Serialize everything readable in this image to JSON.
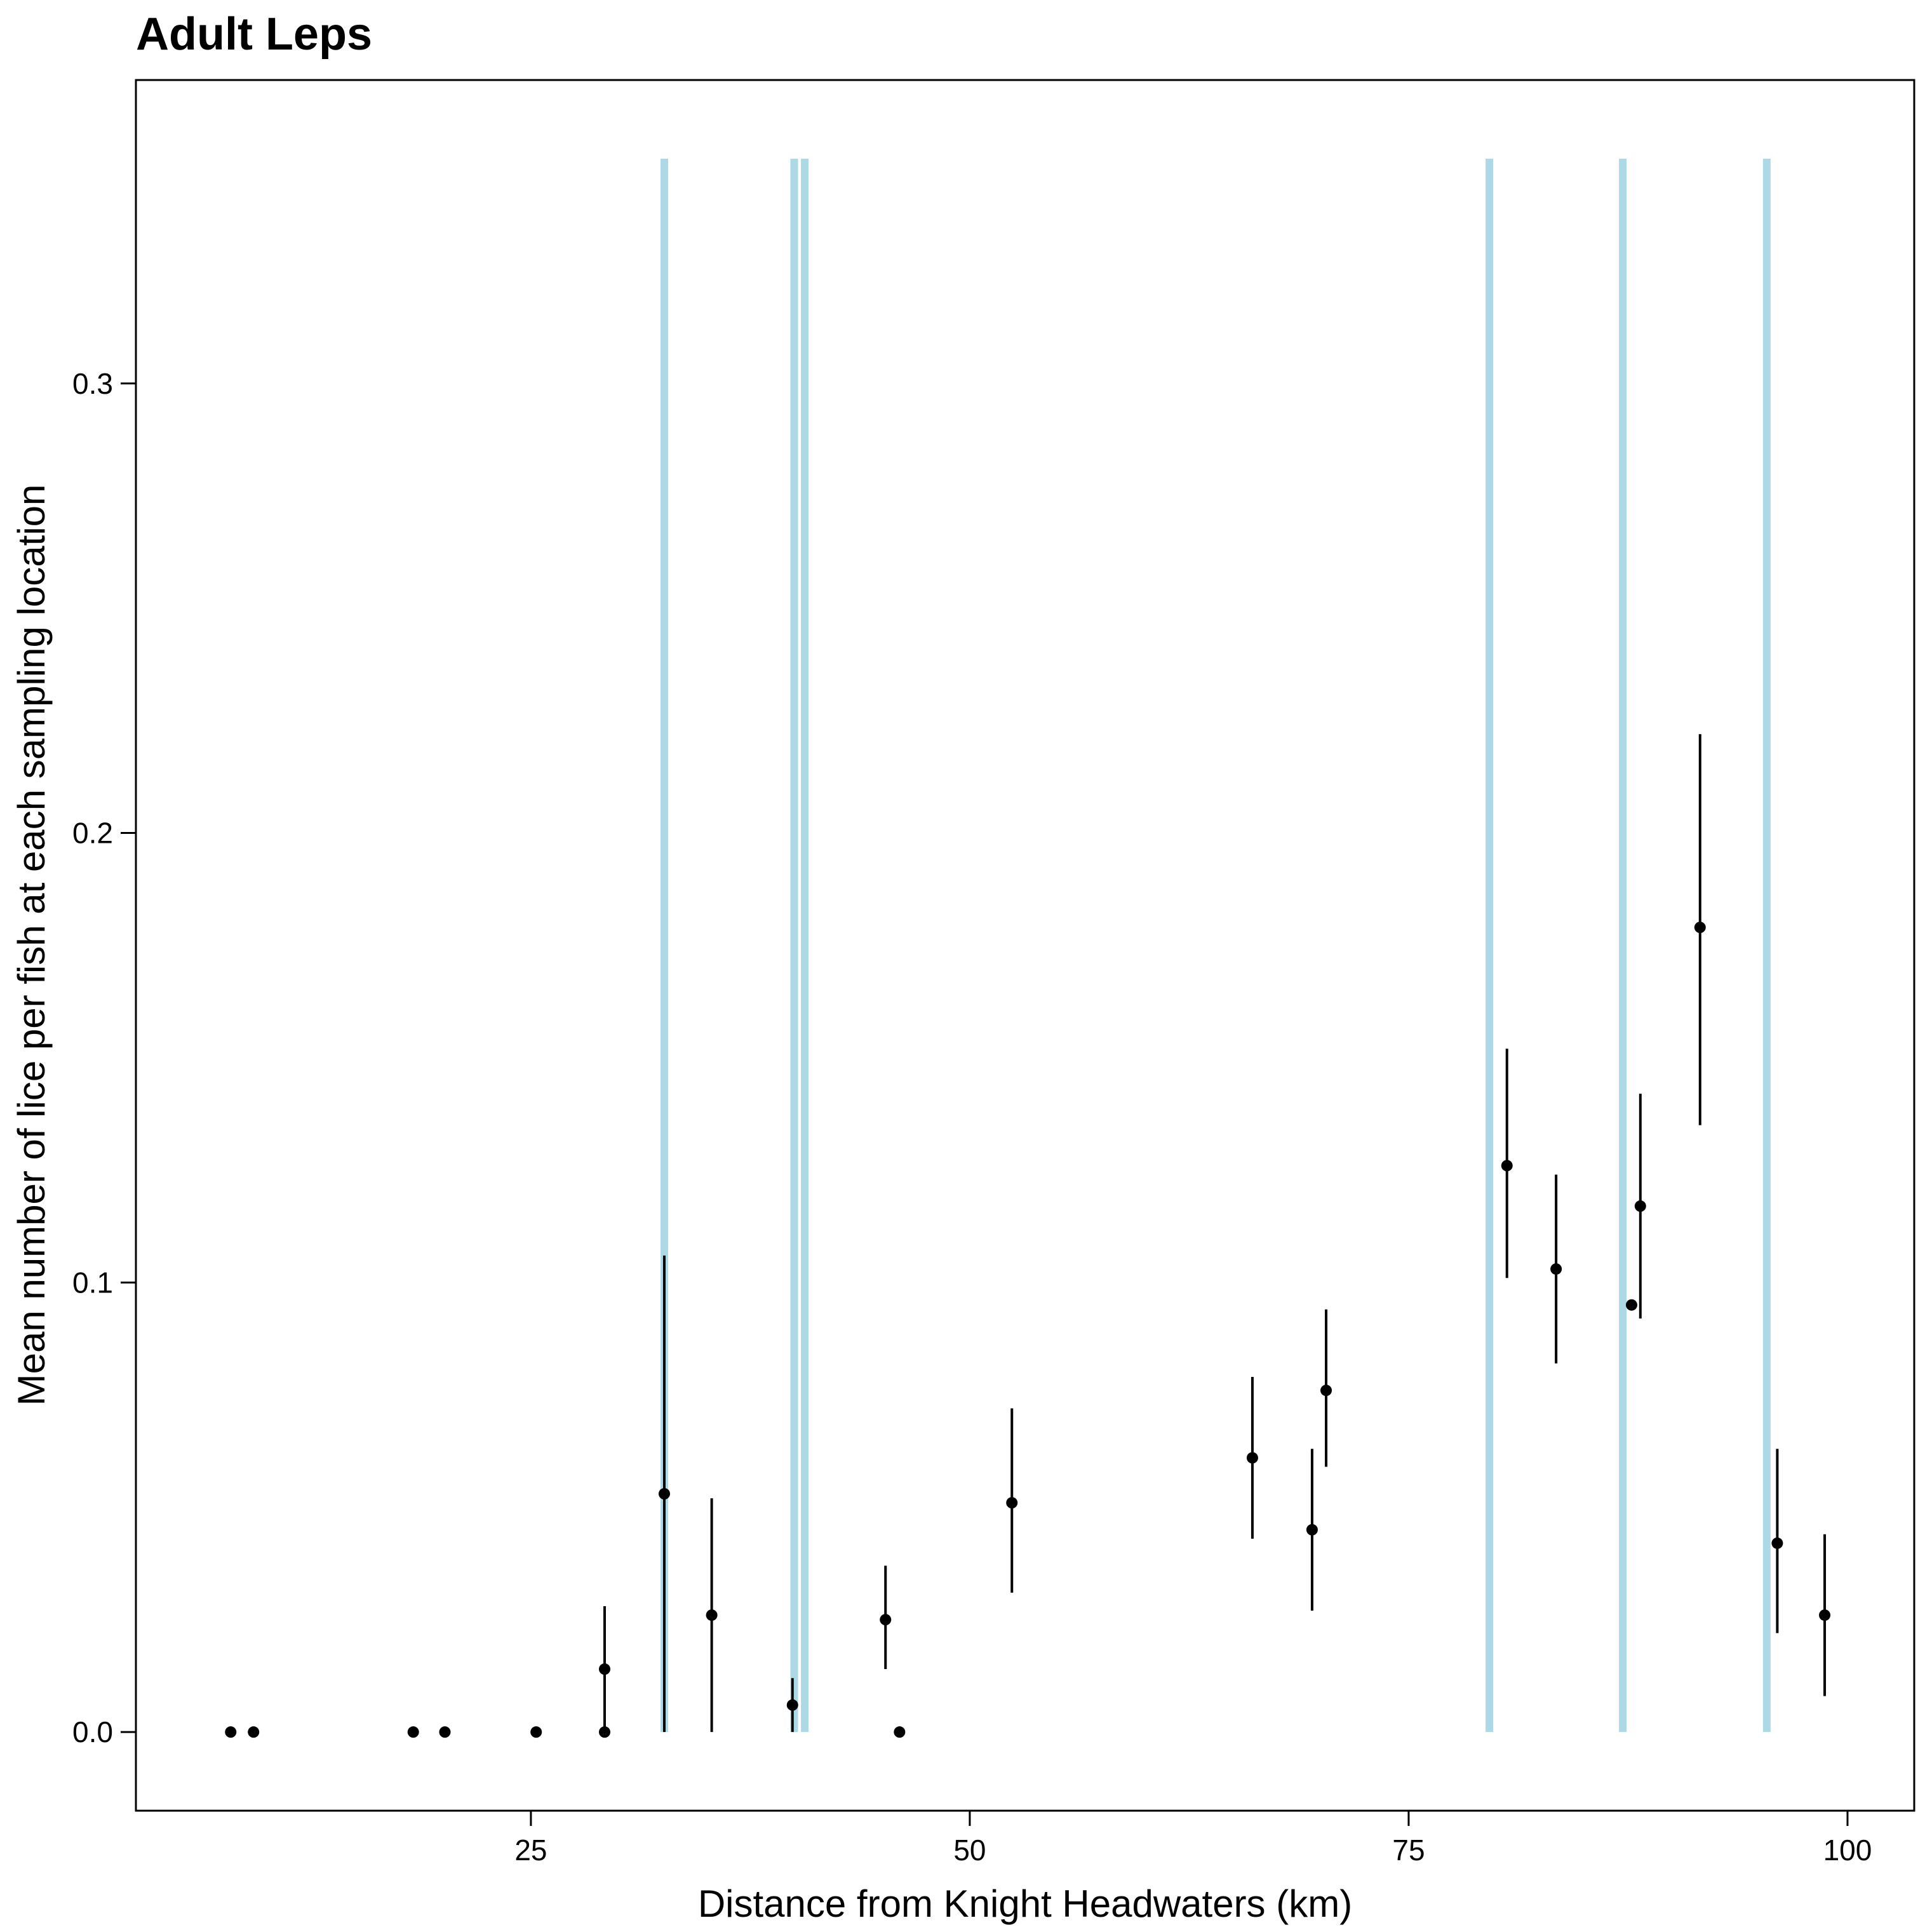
{
  "chart_data": {
    "type": "scatter",
    "title": "Adult Leps",
    "xlabel": "Distance from Knight Headwaters (km)",
    "ylabel": "Mean number of lice per fish at each sampling location",
    "xlim": [
      2.5,
      103.8
    ],
    "ylim": [
      -0.0175,
      0.3675
    ],
    "xticks": [
      25,
      50,
      75,
      100
    ],
    "xtick_labels": [
      "25",
      "50",
      "75",
      "100"
    ],
    "yticks": [
      0.0,
      0.1,
      0.2,
      0.3
    ],
    "ytick_labels": [
      "0.0",
      "0.1",
      "0.2",
      "0.3"
    ],
    "grid": false,
    "legend": "none",
    "point_color": "#000000",
    "farm_line_color": "#add8e6",
    "farm_lines": {
      "x": [
        32.6,
        40.0,
        40.6,
        79.6,
        87.2,
        95.4
      ],
      "y_top": 0.35
    },
    "points": [
      {
        "x": 7.9,
        "y": 0.0,
        "lo": null,
        "hi": null
      },
      {
        "x": 9.2,
        "y": 0.0,
        "lo": null,
        "hi": null
      },
      {
        "x": 18.3,
        "y": 0.0,
        "lo": null,
        "hi": null
      },
      {
        "x": 20.1,
        "y": 0.0,
        "lo": null,
        "hi": null
      },
      {
        "x": 25.3,
        "y": 0.0,
        "lo": null,
        "hi": null
      },
      {
        "x": 29.2,
        "y": 0.0,
        "lo": null,
        "hi": null
      },
      {
        "x": 29.2,
        "y": 0.014,
        "lo": 0.0,
        "hi": 0.028
      },
      {
        "x": 32.6,
        "y": 0.053,
        "lo": 0.0,
        "hi": 0.106
      },
      {
        "x": 35.3,
        "y": 0.026,
        "lo": 0.0,
        "hi": 0.052
      },
      {
        "x": 39.9,
        "y": 0.006,
        "lo": 0.0,
        "hi": 0.012
      },
      {
        "x": 45.2,
        "y": 0.025,
        "lo": 0.014,
        "hi": 0.037
      },
      {
        "x": 46.0,
        "y": 0.0,
        "lo": null,
        "hi": null
      },
      {
        "x": 52.4,
        "y": 0.051,
        "lo": 0.031,
        "hi": 0.072
      },
      {
        "x": 66.1,
        "y": 0.061,
        "lo": 0.043,
        "hi": 0.079
      },
      {
        "x": 69.5,
        "y": 0.045,
        "lo": 0.027,
        "hi": 0.063
      },
      {
        "x": 70.3,
        "y": 0.076,
        "lo": 0.059,
        "hi": 0.094
      },
      {
        "x": 80.6,
        "y": 0.126,
        "lo": 0.101,
        "hi": 0.152
      },
      {
        "x": 83.4,
        "y": 0.103,
        "lo": 0.082,
        "hi": 0.124
      },
      {
        "x": 87.7,
        "y": 0.095,
        "lo": null,
        "hi": null
      },
      {
        "x": 88.2,
        "y": 0.117,
        "lo": 0.092,
        "hi": 0.142
      },
      {
        "x": 91.6,
        "y": 0.179,
        "lo": 0.135,
        "hi": 0.222
      },
      {
        "x": 96.0,
        "y": 0.042,
        "lo": 0.022,
        "hi": 0.063
      },
      {
        "x": 98.7,
        "y": 0.026,
        "lo": 0.008,
        "hi": 0.044
      }
    ]
  }
}
